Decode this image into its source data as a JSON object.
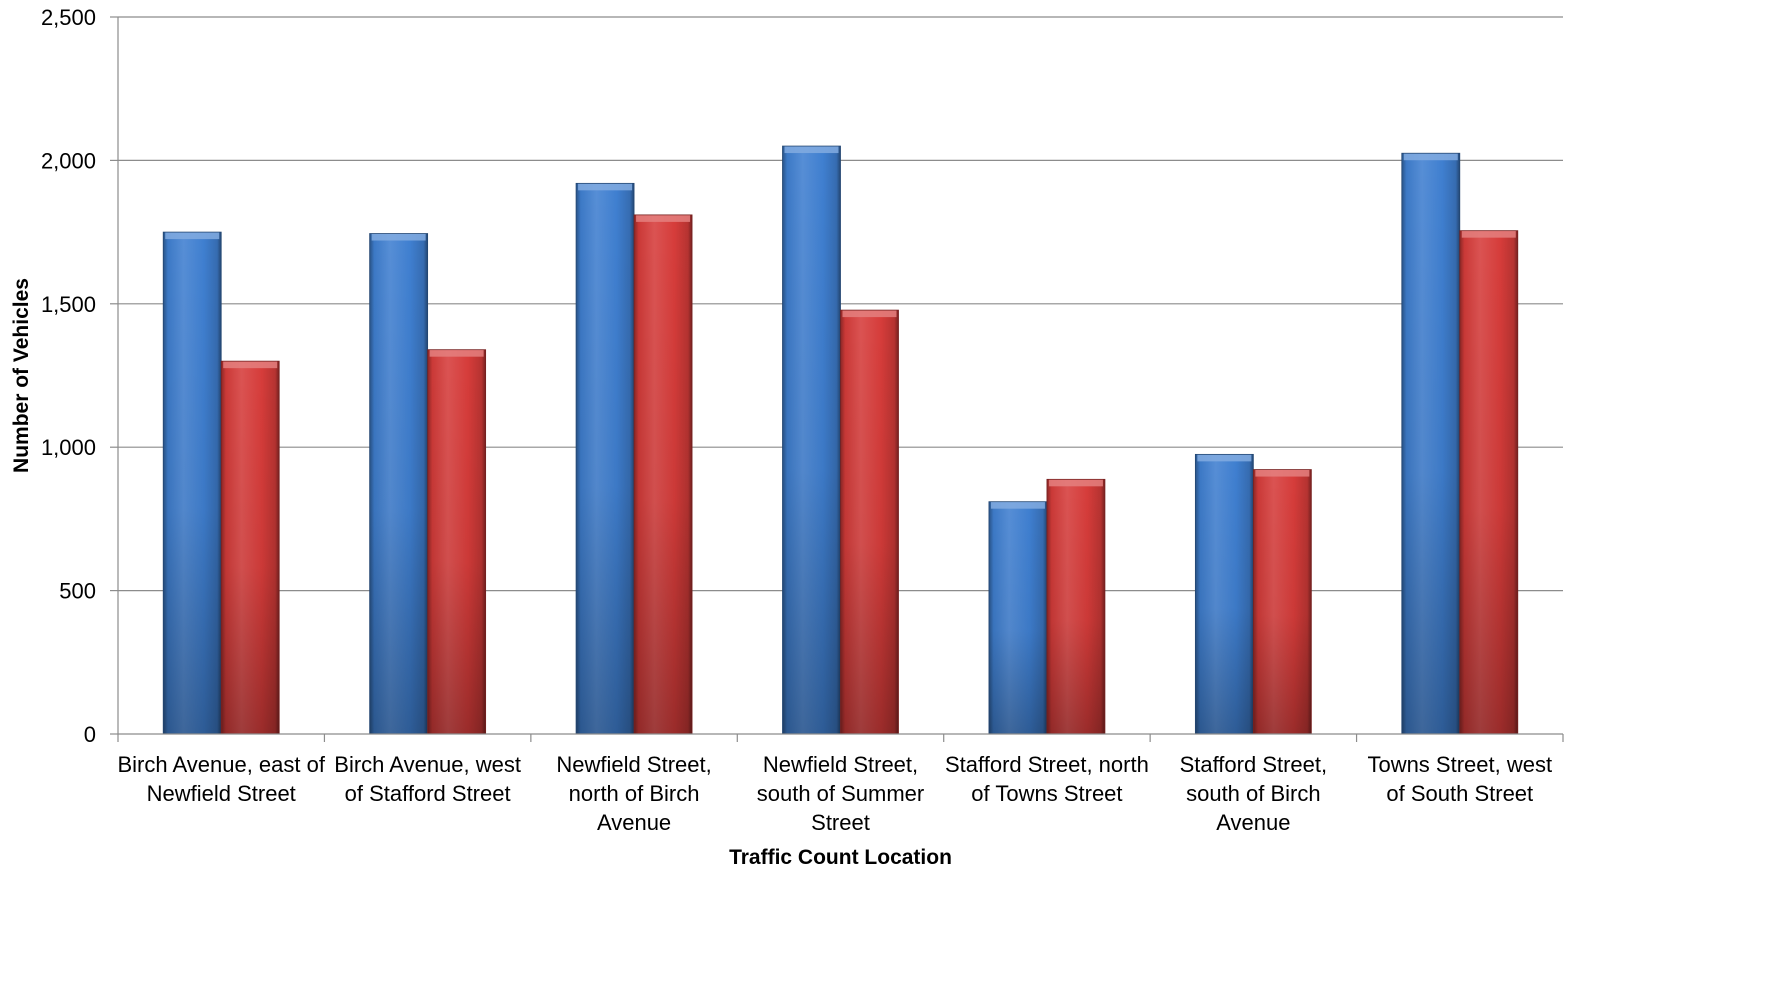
{
  "chart_data": {
    "type": "bar",
    "title": "",
    "xlabel": "Traffic Count Location",
    "ylabel": "Number of Vehicles",
    "ylim": [
      0,
      2500
    ],
    "yticks": [
      0,
      500,
      1000,
      1500,
      2000,
      2500
    ],
    "ytick_labels": [
      "0",
      "500",
      "1,000",
      "1,500",
      "2,000",
      "2,500"
    ],
    "grid": true,
    "legend": "none",
    "categories": [
      [
        "Birch Avenue, east of",
        "Newfield Street"
      ],
      [
        "Birch Avenue, west",
        "of Stafford Street"
      ],
      [
        "Newfield Street,",
        "north of Birch",
        "Avenue"
      ],
      [
        "Newfield Street,",
        "south of Summer",
        "Street"
      ],
      [
        "Stafford Street, north",
        "of Towns Street"
      ],
      [
        "Stafford Street,",
        "south of Birch",
        "Avenue"
      ],
      [
        "Towns Street, west",
        "of South Street"
      ]
    ],
    "series": [
      {
        "color": "#3F7FD0",
        "values": [
          1750,
          1745,
          1920,
          2050,
          810,
          975,
          2025
        ]
      },
      {
        "color": "#D63C3A",
        "values": [
          1300,
          1340,
          1810,
          1478,
          888,
          922,
          1755
        ]
      }
    ]
  }
}
